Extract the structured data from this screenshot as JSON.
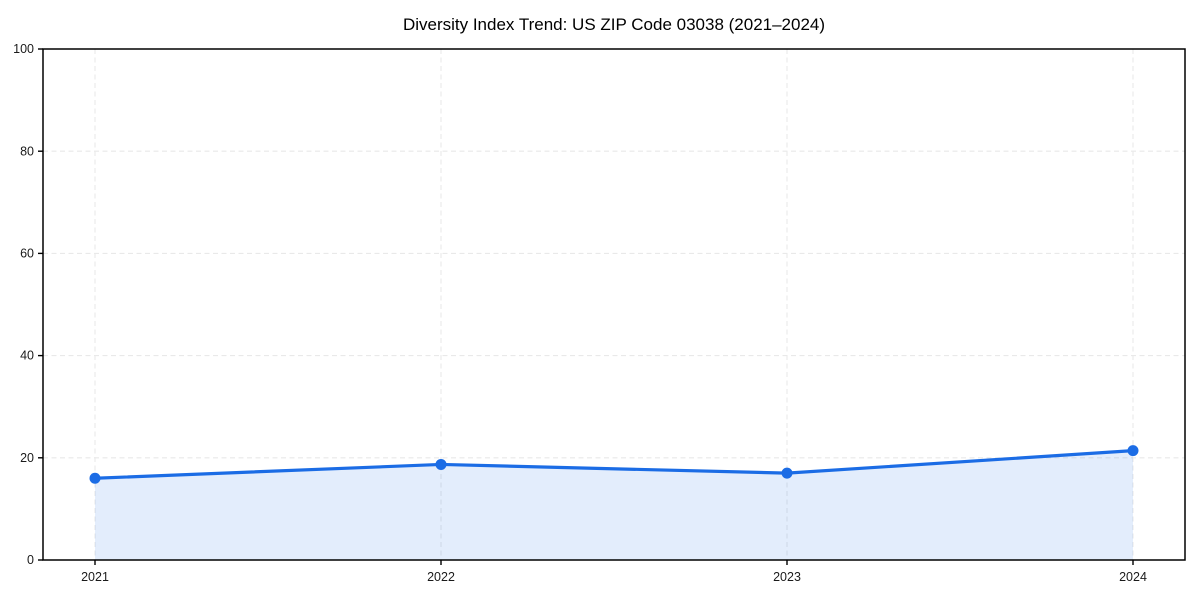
{
  "figure": {
    "background": "#ffffff"
  },
  "chart_data": {
    "type": "area",
    "title": "Diversity Index Trend: US ZIP Code 03038 (2021–2024)",
    "categories": [
      "2021",
      "2022",
      "2023",
      "2024"
    ],
    "series": [
      {
        "name": "Diversity Index",
        "values": [
          16.0,
          18.7,
          17.0,
          21.4
        ]
      }
    ],
    "xlabel": "",
    "ylabel": "",
    "ylim": [
      0,
      100
    ],
    "yticks": [
      0,
      20,
      40,
      60,
      80,
      100
    ],
    "grid": true,
    "grid_style": "dashed",
    "legend_position": "none",
    "line_color": "#1b6ce5",
    "marker": "circle",
    "marker_color": "#1b6ce5",
    "fill_color": "#1b6ce5",
    "fill_opacity": 0.12,
    "gridline_color": "#e9e9e9",
    "spine_color": "#000000",
    "tick_color": "#000000",
    "tick_label_color": "#1a1a1a",
    "title_color": "#000000",
    "plot_background": "#ffffff"
  }
}
